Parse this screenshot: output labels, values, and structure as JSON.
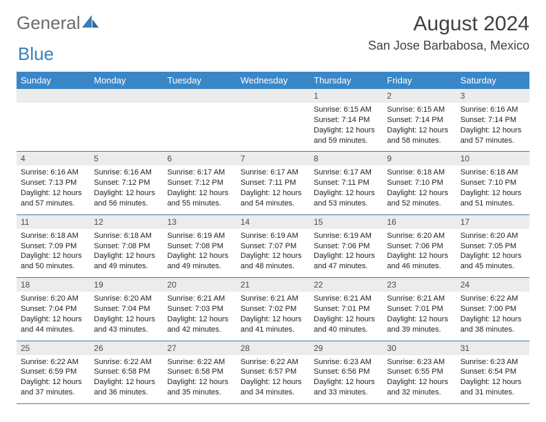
{
  "logo": {
    "text1": "General",
    "text2": "Blue"
  },
  "title": "August 2024",
  "location": "San Jose Barbabosa, Mexico",
  "colors": {
    "header_bg": "#3a87c8",
    "header_text": "#ffffff",
    "daynum_bg": "#ececec",
    "text": "#222222",
    "rule": "#3a7fb8",
    "logo_gray": "#6b6b6b",
    "logo_blue": "#3a7fb8"
  },
  "fonts": {
    "base": "Arial",
    "title_size": 30,
    "location_size": 18,
    "header_size": 13,
    "daynum_size": 12,
    "cell_size": 11
  },
  "days": [
    "Sunday",
    "Monday",
    "Tuesday",
    "Wednesday",
    "Thursday",
    "Friday",
    "Saturday"
  ],
  "weeks": [
    [
      null,
      null,
      null,
      null,
      {
        "n": "1",
        "sr": "6:15 AM",
        "ss": "7:14 PM",
        "dl": "12 hours and 59 minutes."
      },
      {
        "n": "2",
        "sr": "6:15 AM",
        "ss": "7:14 PM",
        "dl": "12 hours and 58 minutes."
      },
      {
        "n": "3",
        "sr": "6:16 AM",
        "ss": "7:14 PM",
        "dl": "12 hours and 57 minutes."
      }
    ],
    [
      {
        "n": "4",
        "sr": "6:16 AM",
        "ss": "7:13 PM",
        "dl": "12 hours and 57 minutes."
      },
      {
        "n": "5",
        "sr": "6:16 AM",
        "ss": "7:12 PM",
        "dl": "12 hours and 56 minutes."
      },
      {
        "n": "6",
        "sr": "6:17 AM",
        "ss": "7:12 PM",
        "dl": "12 hours and 55 minutes."
      },
      {
        "n": "7",
        "sr": "6:17 AM",
        "ss": "7:11 PM",
        "dl": "12 hours and 54 minutes."
      },
      {
        "n": "8",
        "sr": "6:17 AM",
        "ss": "7:11 PM",
        "dl": "12 hours and 53 minutes."
      },
      {
        "n": "9",
        "sr": "6:18 AM",
        "ss": "7:10 PM",
        "dl": "12 hours and 52 minutes."
      },
      {
        "n": "10",
        "sr": "6:18 AM",
        "ss": "7:10 PM",
        "dl": "12 hours and 51 minutes."
      }
    ],
    [
      {
        "n": "11",
        "sr": "6:18 AM",
        "ss": "7:09 PM",
        "dl": "12 hours and 50 minutes."
      },
      {
        "n": "12",
        "sr": "6:18 AM",
        "ss": "7:08 PM",
        "dl": "12 hours and 49 minutes."
      },
      {
        "n": "13",
        "sr": "6:19 AM",
        "ss": "7:08 PM",
        "dl": "12 hours and 49 minutes."
      },
      {
        "n": "14",
        "sr": "6:19 AM",
        "ss": "7:07 PM",
        "dl": "12 hours and 48 minutes."
      },
      {
        "n": "15",
        "sr": "6:19 AM",
        "ss": "7:06 PM",
        "dl": "12 hours and 47 minutes."
      },
      {
        "n": "16",
        "sr": "6:20 AM",
        "ss": "7:06 PM",
        "dl": "12 hours and 46 minutes."
      },
      {
        "n": "17",
        "sr": "6:20 AM",
        "ss": "7:05 PM",
        "dl": "12 hours and 45 minutes."
      }
    ],
    [
      {
        "n": "18",
        "sr": "6:20 AM",
        "ss": "7:04 PM",
        "dl": "12 hours and 44 minutes."
      },
      {
        "n": "19",
        "sr": "6:20 AM",
        "ss": "7:04 PM",
        "dl": "12 hours and 43 minutes."
      },
      {
        "n": "20",
        "sr": "6:21 AM",
        "ss": "7:03 PM",
        "dl": "12 hours and 42 minutes."
      },
      {
        "n": "21",
        "sr": "6:21 AM",
        "ss": "7:02 PM",
        "dl": "12 hours and 41 minutes."
      },
      {
        "n": "22",
        "sr": "6:21 AM",
        "ss": "7:01 PM",
        "dl": "12 hours and 40 minutes."
      },
      {
        "n": "23",
        "sr": "6:21 AM",
        "ss": "7:01 PM",
        "dl": "12 hours and 39 minutes."
      },
      {
        "n": "24",
        "sr": "6:22 AM",
        "ss": "7:00 PM",
        "dl": "12 hours and 38 minutes."
      }
    ],
    [
      {
        "n": "25",
        "sr": "6:22 AM",
        "ss": "6:59 PM",
        "dl": "12 hours and 37 minutes."
      },
      {
        "n": "26",
        "sr": "6:22 AM",
        "ss": "6:58 PM",
        "dl": "12 hours and 36 minutes."
      },
      {
        "n": "27",
        "sr": "6:22 AM",
        "ss": "6:58 PM",
        "dl": "12 hours and 35 minutes."
      },
      {
        "n": "28",
        "sr": "6:22 AM",
        "ss": "6:57 PM",
        "dl": "12 hours and 34 minutes."
      },
      {
        "n": "29",
        "sr": "6:23 AM",
        "ss": "6:56 PM",
        "dl": "12 hours and 33 minutes."
      },
      {
        "n": "30",
        "sr": "6:23 AM",
        "ss": "6:55 PM",
        "dl": "12 hours and 32 minutes."
      },
      {
        "n": "31",
        "sr": "6:23 AM",
        "ss": "6:54 PM",
        "dl": "12 hours and 31 minutes."
      }
    ]
  ],
  "labels": {
    "sunrise": "Sunrise: ",
    "sunset": "Sunset: ",
    "daylight": "Daylight: "
  }
}
